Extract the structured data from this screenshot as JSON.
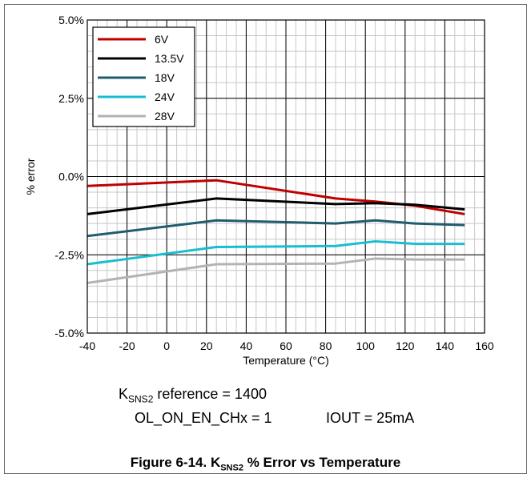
{
  "chart_data": {
    "type": "line",
    "title": "",
    "xlabel": "Temperature (°C)",
    "ylabel": "% error",
    "xlim": [
      -40,
      160
    ],
    "ylim": [
      -5.0,
      5.0
    ],
    "x_ticks": [
      "-40",
      "-20",
      "0",
      "20",
      "40",
      "60",
      "80",
      "100",
      "120",
      "140",
      "160"
    ],
    "y_ticks": [
      "5.0%",
      "2.5%",
      "0.0%",
      "-2.5%",
      "-5.0%"
    ],
    "grid": true,
    "legend_position": "top-left",
    "series": [
      {
        "name": "6V",
        "color": "#c00000",
        "x": [
          -40,
          25,
          85,
          105,
          125,
          150
        ],
        "y": [
          -0.3,
          -0.12,
          -0.7,
          -0.8,
          -0.93,
          -1.2
        ]
      },
      {
        "name": "13.5V",
        "color": "#000000",
        "x": [
          -40,
          25,
          85,
          105,
          125,
          150
        ],
        "y": [
          -1.2,
          -0.7,
          -0.88,
          -0.85,
          -0.9,
          -1.05
        ]
      },
      {
        "name": "18V",
        "color": "#1f5c6e",
        "x": [
          -40,
          25,
          85,
          105,
          125,
          150
        ],
        "y": [
          -1.9,
          -1.4,
          -1.5,
          -1.4,
          -1.5,
          -1.55
        ]
      },
      {
        "name": "24V",
        "color": "#17becf",
        "x": [
          -40,
          25,
          85,
          105,
          125,
          150
        ],
        "y": [
          -2.8,
          -2.25,
          -2.22,
          -2.07,
          -2.15,
          -2.15
        ]
      },
      {
        "name": "28V",
        "color": "#b3b3b3",
        "x": [
          -40,
          25,
          85,
          105,
          125,
          150
        ],
        "y": [
          -3.4,
          -2.8,
          -2.78,
          -2.62,
          -2.65,
          -2.65
        ]
      }
    ]
  },
  "conditions": {
    "ksns_base": "K",
    "ksns_sub": "SNS2",
    "ksns_rest": " reference = 1400",
    "ol_on": "OL_ON_EN_CHx = 1",
    "iout": "IOUT = 25mA"
  },
  "caption": {
    "prefix": "Figure 6-14. K",
    "sub": "SNS2",
    "suffix": " % Error vs Temperature"
  }
}
